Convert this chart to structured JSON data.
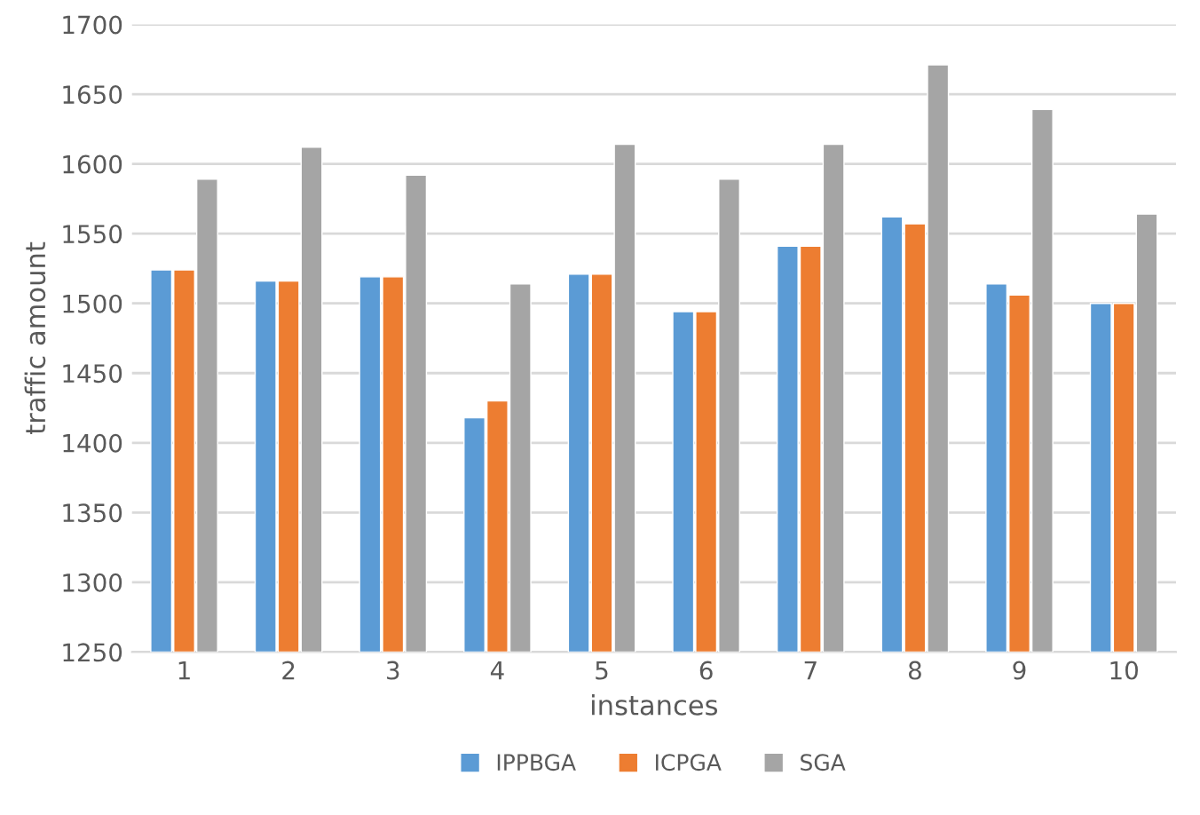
{
  "chart_data": {
    "type": "bar",
    "xlabel": "instances",
    "ylabel": "traffic amount",
    "categories": [
      "1",
      "2",
      "3",
      "4",
      "5",
      "6",
      "7",
      "8",
      "9",
      "10"
    ],
    "series": [
      {
        "name": "IPPBGA",
        "color": "#5b9bd5",
        "values": [
          1524,
          1516,
          1519,
          1418,
          1521,
          1494,
          1541,
          1562,
          1514,
          1500
        ]
      },
      {
        "name": "ICPGA",
        "color": "#ed7d31",
        "values": [
          1524,
          1516,
          1519,
          1430,
          1521,
          1494,
          1541,
          1557,
          1506,
          1500
        ]
      },
      {
        "name": "SGA",
        "color": "#a5a5a5",
        "values": [
          1589,
          1612,
          1592,
          1514,
          1614,
          1589,
          1614,
          1671,
          1639,
          1564
        ]
      }
    ],
    "ylim": [
      1250,
      1700
    ],
    "yticks": [
      1250,
      1300,
      1350,
      1400,
      1450,
      1500,
      1550,
      1600,
      1650,
      1700
    ],
    "grid": "y",
    "legend": "bottom"
  }
}
